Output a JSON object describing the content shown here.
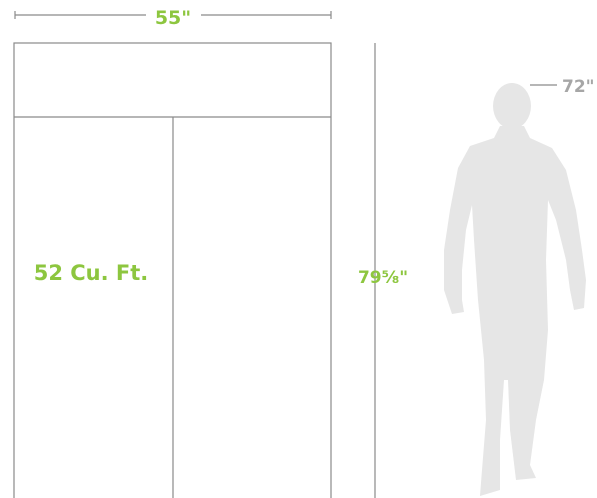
{
  "dimensions": {
    "width": "55\"",
    "capacity": "52 Cu. Ft.",
    "height": "79⅝\"",
    "person_height": "72\""
  }
}
